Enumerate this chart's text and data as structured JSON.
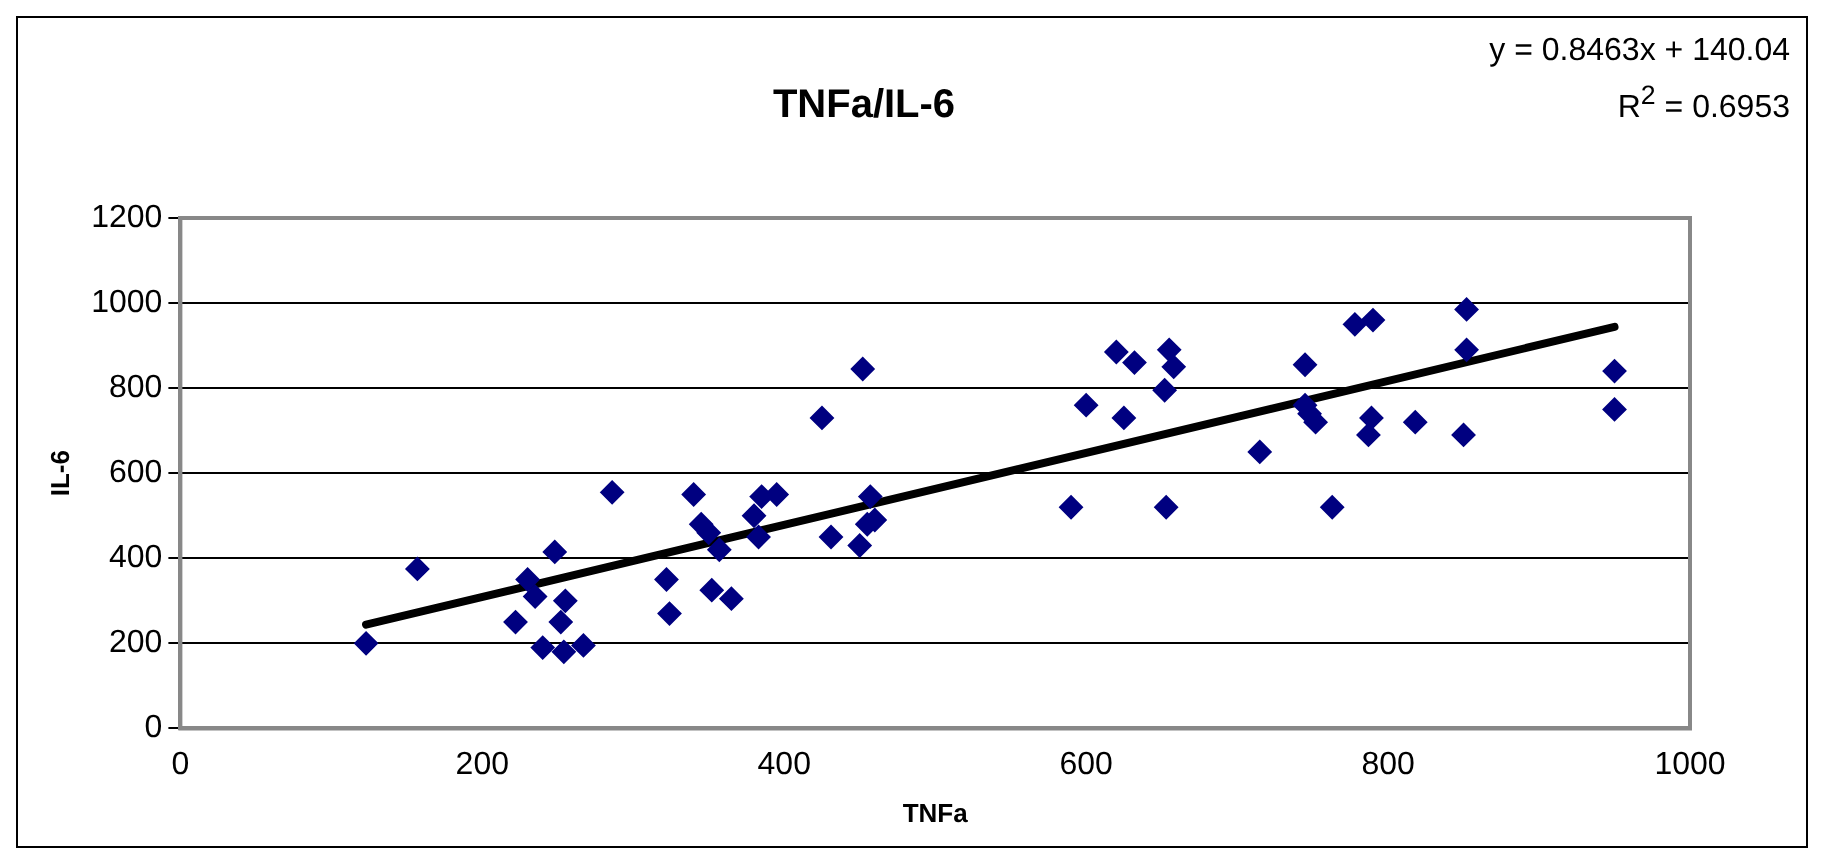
{
  "chart_data": {
    "type": "scatter",
    "title": "TNFa/IL-6",
    "xlabel": "TNFa",
    "ylabel": "IL-6",
    "marker": "diamond",
    "grid": "y",
    "xlim": [
      0,
      1000
    ],
    "xticks": [
      0,
      200,
      400,
      600,
      800,
      1000
    ],
    "ylim": [
      0,
      1200
    ],
    "yticks": [
      0,
      200,
      400,
      600,
      800,
      1000,
      1200
    ],
    "annotations": [
      "y = 0.8463x + 140.04",
      "R$^{2}$ = 0.6953"
    ],
    "series": [
      {
        "type": "scatter",
        "color": "#000080",
        "x": [
          123,
          157,
          222,
          230,
          235,
          240,
          248,
          252,
          254,
          255,
          267,
          286,
          322,
          324,
          340,
          345,
          350,
          352,
          357,
          365,
          380,
          383,
          385,
          395,
          425,
          431,
          450,
          452,
          455,
          457,
          460,
          590,
          600,
          620,
          625,
          632,
          652,
          653,
          655,
          658,
          715,
          745,
          745,
          748,
          752,
          763,
          778,
          787,
          789,
          790,
          818,
          850,
          852,
          852,
          950,
          950
        ],
        "values": [
          200,
          375,
          250,
          350,
          310,
          190,
          415,
          250,
          180,
          300,
          195,
          555,
          350,
          270,
          550,
          480,
          460,
          325,
          420,
          305,
          500,
          450,
          545,
          550,
          730,
          450,
          430,
          845,
          480,
          545,
          490,
          520,
          760,
          885,
          730,
          860,
          795,
          520,
          890,
          850,
          650,
          760,
          855,
          740,
          720,
          520,
          950,
          690,
          730,
          960,
          720,
          690,
          985,
          890,
          840,
          750
        ]
      },
      {
        "type": "line",
        "color": "#000000",
        "line_style": "solid",
        "marker": "none",
        "x": [
          123,
          950
        ],
        "values": [
          244,
          944
        ]
      }
    ]
  }
}
